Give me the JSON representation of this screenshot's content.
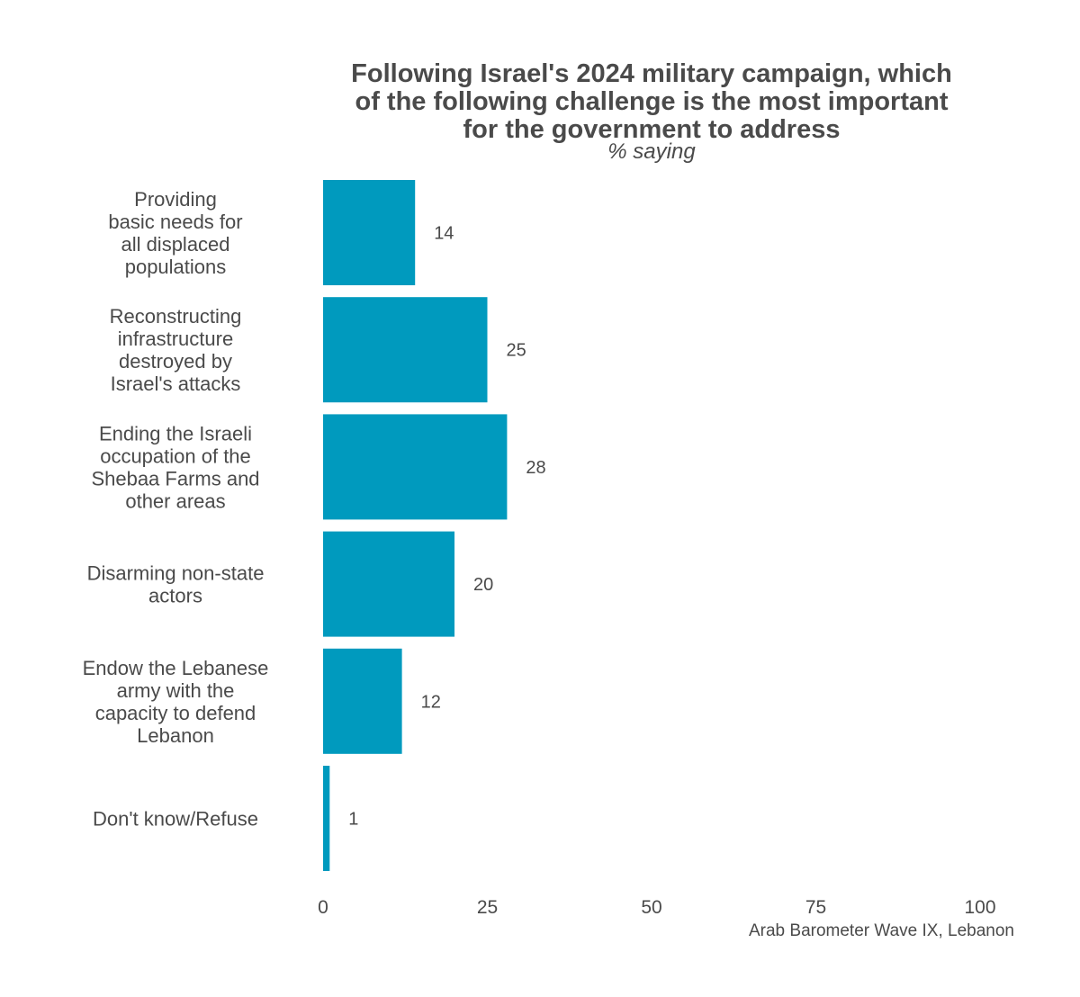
{
  "chart_data": {
    "type": "bar",
    "orientation": "horizontal",
    "title_lines": [
      "Following Israel's 2024 military campaign, which",
      "of the following challenge is the most important",
      "for the government to address"
    ],
    "subtitle": "% saying",
    "categories": [
      [
        "Providing",
        "basic needs for",
        "all displaced",
        "populations"
      ],
      [
        "Reconstructing",
        "infrastructure",
        "destroyed by",
        "Israel's attacks"
      ],
      [
        "Ending the Israeli",
        "occupation of the",
        "Shebaa Farms and",
        "other areas"
      ],
      [
        "Disarming non-state",
        "actors"
      ],
      [
        "Endow the Lebanese",
        "army with the",
        "capacity to defend",
        "Lebanon"
      ],
      [
        "Don't know/Refuse"
      ]
    ],
    "values": [
      14,
      25,
      28,
      20,
      12,
      1
    ],
    "xlim": [
      0,
      100
    ],
    "xticks": [
      0,
      25,
      50,
      75,
      100
    ],
    "bar_color": "#009ABE",
    "grid": false,
    "caption": "Arab Barometer Wave IX, Lebanon"
  }
}
